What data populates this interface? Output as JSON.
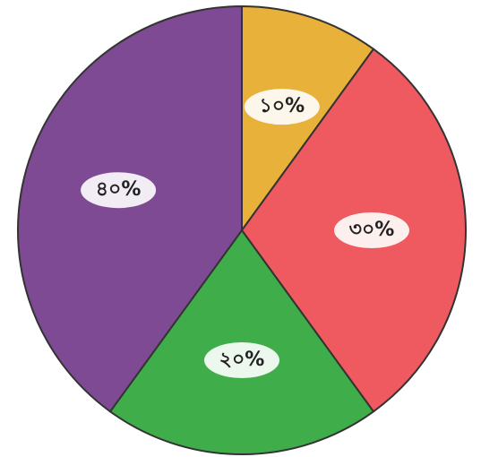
{
  "chart_data": {
    "type": "pie",
    "categories": [
      null,
      null,
      null,
      null
    ],
    "values": [
      10,
      30,
      20,
      40
    ],
    "value_labels": [
      "১০%",
      "৩০%",
      "২০%",
      "৪০%"
    ],
    "colors": [
      "#e8b13a",
      "#ee5a5f",
      "#3fae4a",
      "#7e4a93"
    ]
  }
}
